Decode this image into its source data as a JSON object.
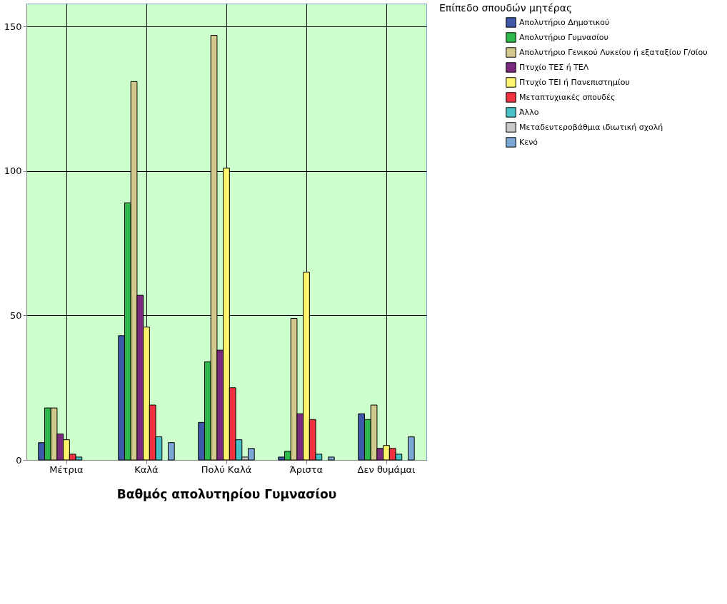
{
  "chart_data": {
    "type": "bar",
    "xlabel": "Βαθμός απολυτηρίου Γυμνασίου",
    "legend_title": "Επίπεδο σπουδών μητέρας",
    "categories": [
      "Μέτρια",
      "Καλά",
      "Πολύ Καλά",
      "Άριστα",
      "Δεν θυμάμαι"
    ],
    "series": [
      {
        "name": "Απολυτήριο Δημοτικού",
        "color": "#3d59a8",
        "values": [
          6,
          43,
          13,
          1,
          16
        ]
      },
      {
        "name": "Απολυτήριο Γυμνασίου",
        "color": "#2db84a",
        "values": [
          18,
          89,
          34,
          3,
          14
        ]
      },
      {
        "name": "Απολυτήριο Γενικού Λυκείου ή εξαταξίου Γ/σίου",
        "color": "#d4c98f",
        "values": [
          18,
          131,
          147,
          49,
          19
        ]
      },
      {
        "name": "Πτυχίο ΤΕΣ ή ΤΕΛ",
        "color": "#7b2a7f",
        "values": [
          9,
          57,
          38,
          16,
          4
        ]
      },
      {
        "name": "Πτυχίο ΤΕΙ ή Πανεπιστημίου",
        "color": "#fdf56e",
        "values": [
          7,
          46,
          101,
          65,
          5
        ]
      },
      {
        "name": "Μεταπτυχιακές σπουδές",
        "color": "#ef3340",
        "values": [
          2,
          19,
          25,
          14,
          4
        ]
      },
      {
        "name": "Άλλο",
        "color": "#47c0c6",
        "values": [
          1,
          8,
          7,
          2,
          2
        ]
      },
      {
        "name": "Μεταδευτεροβάθμια ιδιωτική σχολή",
        "color": "#c8c8c8",
        "values": [
          0,
          0,
          1,
          0,
          0
        ]
      },
      {
        "name": "Κενό",
        "color": "#7ba7d4",
        "values": [
          0,
          6,
          4,
          1,
          8
        ]
      }
    ],
    "ylim": [
      0,
      158
    ],
    "yticks": [
      0,
      50,
      100,
      150
    ],
    "grid": true,
    "legend": "right"
  }
}
